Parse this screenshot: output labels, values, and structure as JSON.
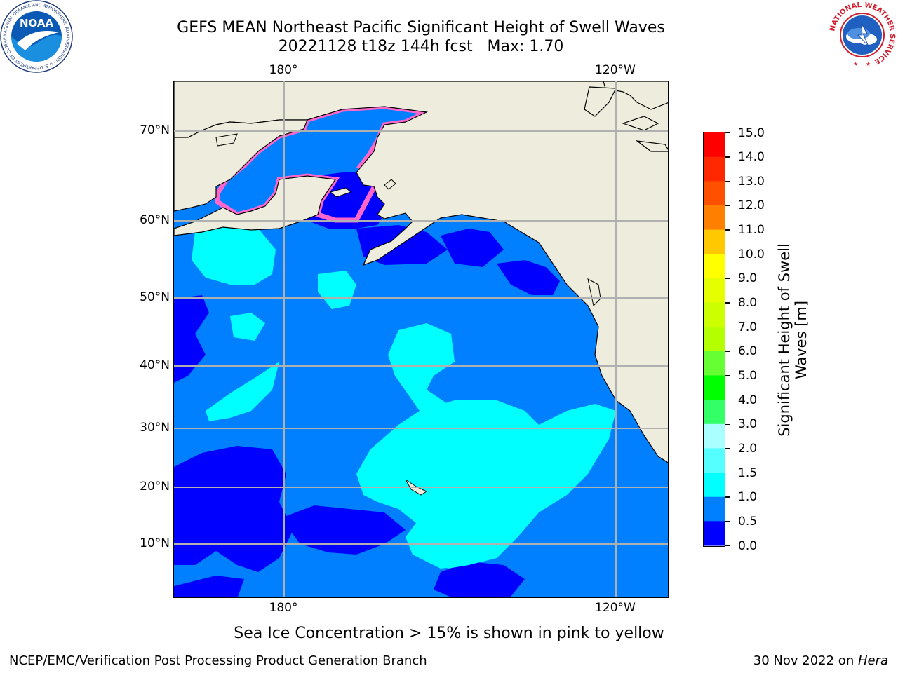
{
  "header": {
    "title": "GEFS MEAN Northeast Pacific Significant Height of Swell Waves",
    "subtitle": "20221128 t18z 144h fcst   Max: 1.70"
  },
  "map": {
    "lon_labels_top": [
      "180°",
      "120°W"
    ],
    "lon_labels_bottom": [
      "180°",
      "120°W"
    ],
    "lat_labels": [
      "70°N",
      "60°N",
      "50°N",
      "40°N",
      "30°N",
      "20°N",
      "10°N"
    ],
    "colors": {
      "land": "#eeecdc",
      "ocean_1_1_5": "#0080ff",
      "ocean_0_5_1": "#0066ff",
      "ocean_0_0_5": "#0000ff",
      "ocean_1_5_2": "#00ffff",
      "ice_pink": "#ff66cc",
      "ice_yellow": "#ffd200",
      "grid": "#b0b0b0"
    }
  },
  "colorbar": {
    "title_line1": "Significant Height of Swell",
    "title_line2": "Waves [m]",
    "ticks": [
      "15.0",
      "14.0",
      "13.0",
      "12.0",
      "11.0",
      "10.0",
      "9.0",
      "8.0",
      "7.0",
      "6.0",
      "5.0",
      "4.0",
      "3.0",
      "2.0",
      "1.5",
      "1.0",
      "0.5",
      "0.0"
    ],
    "bin_colors_top_to_bottom": [
      "#ff0000",
      "#ff2800",
      "#ff5000",
      "#ff8000",
      "#ffa000",
      "#ffc800",
      "#ffff00",
      "#e6ff00",
      "#ccff00",
      "#b4ff00",
      "#66ff33",
      "#00ff00",
      "#33ff66",
      "#66ffaa",
      "#aaffff",
      "#55ffff",
      "#00ffff",
      "#0080ff",
      "#0000ff"
    ]
  },
  "note": "Sea Ice Concentration > 15% is shown in pink to yellow",
  "footer": {
    "left": "NCEP/EMC/Verification Post Processing Product Generation Branch",
    "right_prefix": "30 Nov 2022 on ",
    "right_system": "Hera"
  },
  "logos": {
    "noaa_label": "NOAA",
    "noaa_ring_text": "NATIONAL OCEANIC AND ATMOSPHERIC ADMINISTRATION · U.S. DEPARTMENT OF COMMERCE",
    "nws_ring_text": "NATIONAL WEATHER SERVICE"
  }
}
